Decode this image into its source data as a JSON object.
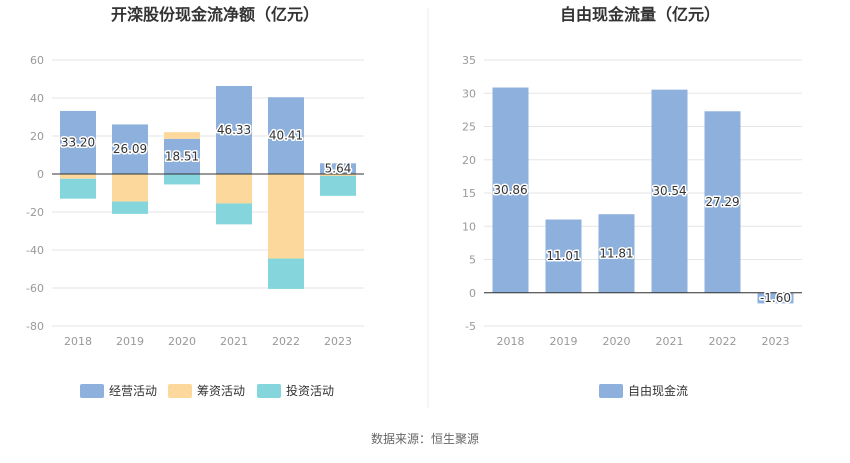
{
  "source": "数据来源：恒生聚源",
  "colors": {
    "operating": "#8eb0dc",
    "financing": "#fdd89c",
    "investing": "#85d6dc",
    "fcf": "#8eb0dc",
    "grid": "#e6e6e6",
    "axis": "#333333"
  },
  "chart_data": [
    {
      "type": "bar",
      "stacked": true,
      "title": "开滦股份现金流净额（亿元）",
      "categories": [
        "2018",
        "2019",
        "2020",
        "2021",
        "2022",
        "2023"
      ],
      "ylim": [
        -80,
        60
      ],
      "yticks": [
        60,
        40,
        20,
        0,
        -20,
        -40,
        -60,
        -80
      ],
      "legend_position": "bottom",
      "series": [
        {
          "name": "经营活动",
          "color_key": "operating",
          "values": [
            33.2,
            26.09,
            18.51,
            46.33,
            40.41,
            5.64
          ],
          "labels": [
            "33.20",
            "26.09",
            "18.51",
            "46.33",
            "40.41",
            "5.64"
          ]
        },
        {
          "name": "筹资活动",
          "color_key": "financing",
          "values": [
            -2.5,
            -14.5,
            3.5,
            -15.5,
            -44.5,
            -1.0
          ]
        },
        {
          "name": "投资活动",
          "color_key": "investing",
          "values": [
            -10.5,
            -6.5,
            -5.5,
            -11.0,
            -16.0,
            -10.5
          ]
        }
      ]
    },
    {
      "type": "bar",
      "title": "自由现金流量（亿元）",
      "categories": [
        "2018",
        "2019",
        "2020",
        "2021",
        "2022",
        "2023"
      ],
      "ylim": [
        -5,
        35
      ],
      "yticks": [
        35,
        30,
        25,
        20,
        15,
        10,
        5,
        0,
        -5
      ],
      "legend_position": "bottom",
      "series": [
        {
          "name": "自由现金流",
          "color_key": "fcf",
          "values": [
            30.86,
            11.01,
            11.81,
            30.54,
            27.29,
            -1.6
          ],
          "labels": [
            "30.86",
            "11.01",
            "11.81",
            "30.54",
            "27.29",
            "-1.60"
          ]
        }
      ]
    }
  ]
}
